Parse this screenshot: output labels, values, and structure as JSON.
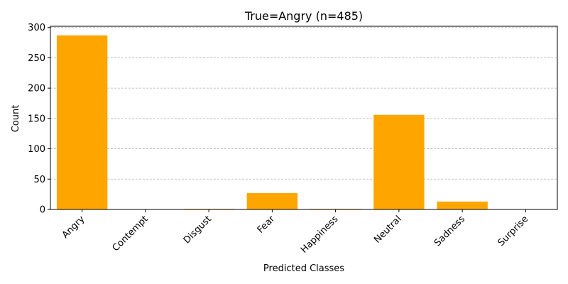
{
  "chart_data": {
    "type": "bar",
    "title": "True=Angry  (n=485)",
    "xlabel": "Predicted Classes",
    "ylabel": "Count",
    "categories": [
      "Angry",
      "Contempt",
      "Disgust",
      "Fear",
      "Happiness",
      "Neutral",
      "Sadness",
      "Surprise"
    ],
    "values": [
      287,
      0,
      1,
      27,
      1,
      156,
      13,
      0
    ],
    "ylim": [
      0,
      302
    ],
    "yticks": [
      0,
      50,
      100,
      150,
      200,
      250,
      300
    ],
    "grid": "y-dashed",
    "bar_color": "#FFA500",
    "grid_color": "#b0b0b0"
  }
}
